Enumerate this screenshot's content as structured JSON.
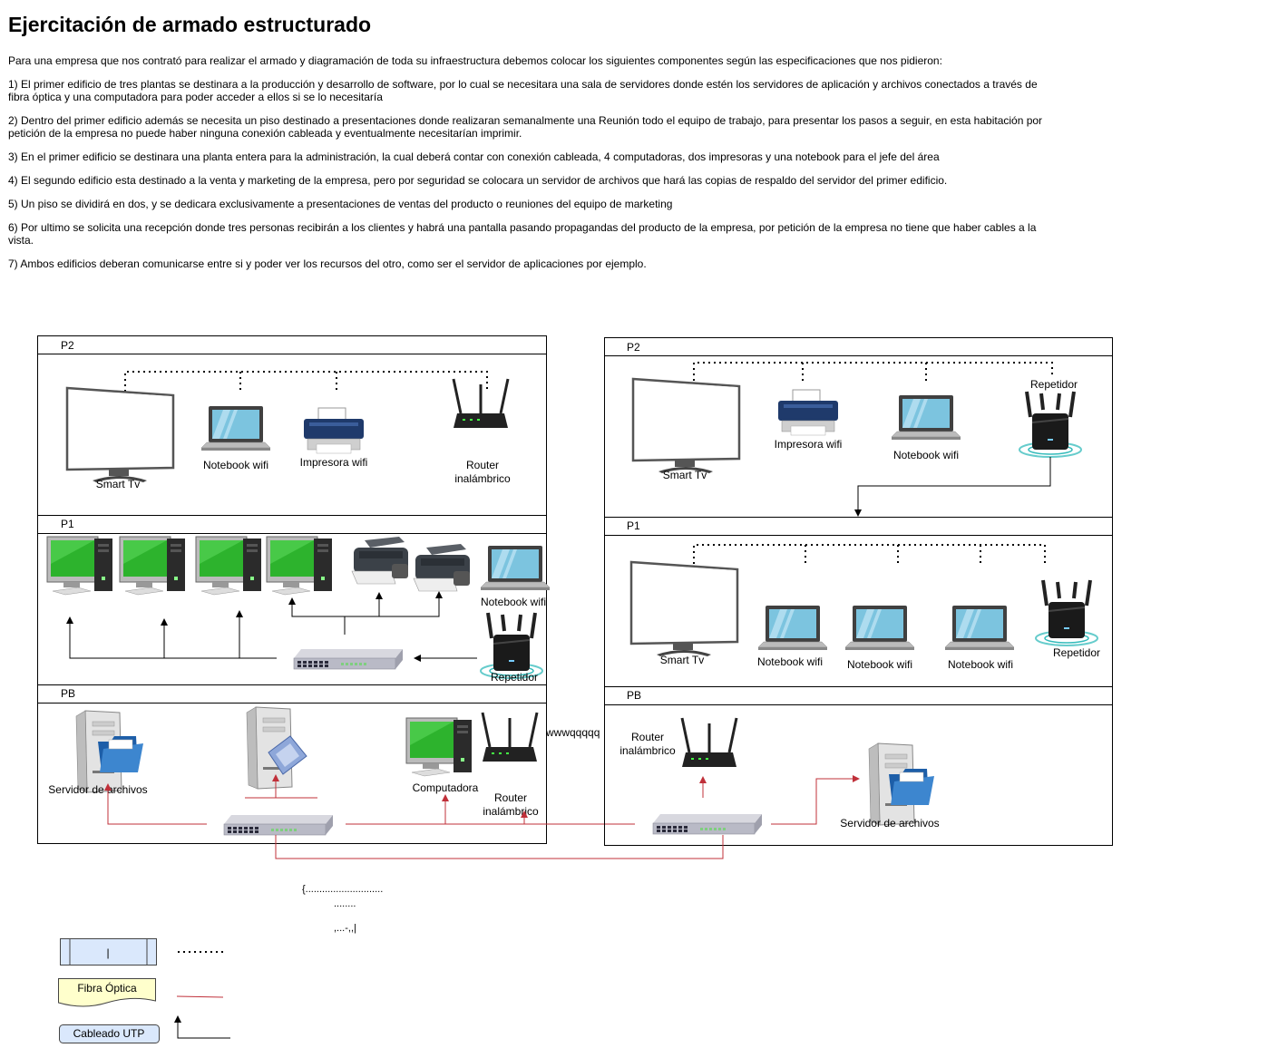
{
  "title": "Ejercitación de armado estructurado",
  "paragraphs": [
    "Para una empresa que  nos contrató para realizar el armado y diagramación de toda su infraestructura debemos colocar los siguientes componentes según las especificaciones que nos pidieron:",
    "1) El primer edificio de tres plantas se destinara a la producción y desarrollo de software, por lo cual se necesitara una sala de servidores donde estén los servidores de aplicación y archivos conectados a través de fibra óptica y una computadora para poder acceder a ellos si se lo necesitaría",
    "2) Dentro del primer edificio además se necesita un piso destinado a presentaciones donde realizaran semanalmente una Reunión todo el equipo de trabajo, para presentar los pasos a seguir, en esta habitación por petición de la empresa no puede haber ninguna conexión cableada y eventualmente necesitarían imprimir.",
    "3) En el primer edificio se destinara una planta entera para la administración, la cual deberá contar con conexión cableada, 4 computadoras, dos impresoras y una notebook para el jefe del área",
    "4) El segundo edificio esta destinado a la venta y marketing de la empresa, pero por seguridad se colocara un servidor de archivos que hará las copias de respaldo del servidor del primer edificio.",
    "5) Un piso se dividirá en dos, y se dedicara exclusivamente a presentaciones de ventas del producto o reuniones del equipo de marketing",
    "6) Por ultimo se solicita una recepción donde tres personas recibirán a los clientes y habrá una pantalla pasando propagandas del producto de la empresa, por petición de la empresa no tiene que haber cables a la vista.",
    "7) Ambos edificios deberan comunicarse entre si y poder ver los recursos del otro, como ser el servidor de aplicaciones por ejemplo."
  ],
  "building1": {
    "floors": {
      "p2": "P2",
      "p1": "P1",
      "pb": "PB"
    },
    "p2": {
      "tv": "Smart Tv",
      "notebook": "Notebook wifi",
      "printer": "Impresora wifi",
      "router_l1": "Router",
      "router_l2": "inalámbrico"
    },
    "p1": {
      "notebook": "Notebook wifi",
      "repeater": "Repetidor"
    },
    "pb": {
      "file_server": "Servidor de archivos",
      "computer": "Computadora",
      "router_l1": "Router",
      "router_l2": "inalámbrico"
    }
  },
  "between_buildings": "wwwqqqqq",
  "building2": {
    "floors": {
      "p2": "P2",
      "p1": "P1",
      "pb": "PB"
    },
    "p2": {
      "tv": "Smart Tv",
      "printer": "Impresora wifi",
      "notebook": "Notebook wifi",
      "repeater": "Repetidor"
    },
    "p1": {
      "tv": "Smart Tv",
      "nb1": "Notebook wifi",
      "nb2": "Notebook wifi",
      "nb3": "Notebook wifi",
      "repeater": "Repetidor"
    },
    "pb": {
      "router_l1": "Router",
      "router_l2": "inalámbrico",
      "file_server": "Servidor de archivos"
    }
  },
  "stray": {
    "t1": "{............................",
    "t2": "........",
    "t3": ",...-,,|"
  },
  "legend": {
    "box_label": "|",
    "fiber": "Fibra Óptica",
    "utp": "Cableado UTP"
  },
  "colors": {
    "fiber": "#c0303a",
    "utp": "#000000",
    "screen_green": "#2db32d",
    "laptop_screen": "#79c3e0",
    "legend_box": "#dae8fc",
    "legend_note": "#ffffcc"
  }
}
